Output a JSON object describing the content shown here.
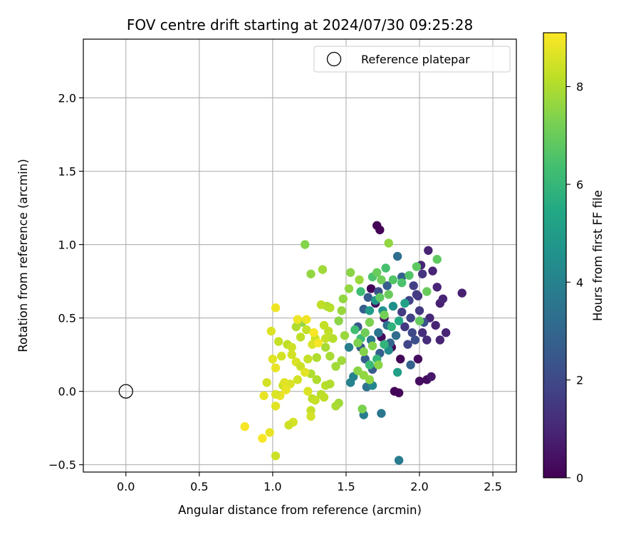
{
  "chart_data": {
    "type": "scatter",
    "title": "FOV centre drift starting at 2024/07/30 09:25:28",
    "xlabel": "Angular distance from reference (arcmin)",
    "ylabel": "Rotation from reference (arcmin)",
    "xlim": [
      -0.29,
      2.66
    ],
    "ylim": [
      -0.55,
      2.4
    ],
    "xticks": [
      0.0,
      0.5,
      1.0,
      1.5,
      2.0,
      2.5
    ],
    "xtick_labels": [
      "0.0",
      "0.5",
      "1.0",
      "1.5",
      "2.0",
      "2.5"
    ],
    "yticks": [
      -0.5,
      0.0,
      0.5,
      1.0,
      1.5,
      2.0
    ],
    "ytick_labels": [
      "−0.5",
      "0.0",
      "0.5",
      "1.0",
      "1.5",
      "2.0"
    ],
    "grid": true,
    "legend": {
      "placement": "upper right",
      "entries": [
        "Reference platepar"
      ]
    },
    "reference_point": {
      "x": 0.0,
      "y": 0.0,
      "label": "Reference platepar"
    },
    "colorbar": {
      "label": "Hours from first FF file",
      "colormap": "viridis",
      "range": [
        0,
        9.1
      ],
      "ticks": [
        0,
        2,
        4,
        6,
        8
      ],
      "tick_labels": [
        "0",
        "2",
        "4",
        "6",
        "8"
      ]
    },
    "points": [
      [
        1.71,
        1.13,
        0.05
      ],
      [
        1.73,
        1.1,
        0.05
      ],
      [
        1.67,
        0.7,
        0.1
      ],
      [
        1.7,
        0.6,
        0.3
      ],
      [
        1.76,
        0.5,
        0.4
      ],
      [
        1.74,
        0.37,
        0.2
      ],
      [
        1.81,
        0.3,
        0.1
      ],
      [
        1.87,
        0.22,
        0.1
      ],
      [
        1.83,
        0.0,
        0.1
      ],
      [
        1.86,
        -0.01,
        0.1
      ],
      [
        1.99,
        0.22,
        0.3
      ],
      [
        2.0,
        0.07,
        0.3
      ],
      [
        2.05,
        0.08,
        0.3
      ],
      [
        2.08,
        0.1,
        0.6
      ],
      [
        2.29,
        0.67,
        0.8
      ],
      [
        2.01,
        0.86,
        0.9
      ],
      [
        2.06,
        0.96,
        0.9
      ],
      [
        2.09,
        0.82,
        0.9
      ],
      [
        2.12,
        0.71,
        0.9
      ],
      [
        2.14,
        0.6,
        0.8
      ],
      [
        2.16,
        0.63,
        0.9
      ],
      [
        2.18,
        0.4,
        0.9
      ],
      [
        2.14,
        0.35,
        0.9
      ],
      [
        2.11,
        0.45,
        0.9
      ],
      [
        2.07,
        0.5,
        1.0
      ],
      [
        2.02,
        0.4,
        1.2
      ],
      [
        2.05,
        0.35,
        1.2
      ],
      [
        2.02,
        0.8,
        1.4
      ],
      [
        1.99,
        0.65,
        1.4
      ],
      [
        1.93,
        0.62,
        1.8
      ],
      [
        1.94,
        0.5,
        1.8
      ],
      [
        1.95,
        0.4,
        2.0
      ],
      [
        1.9,
        0.44,
        1.5
      ],
      [
        1.88,
        0.54,
        1.6
      ],
      [
        1.96,
        0.72,
        1.7
      ],
      [
        1.98,
        0.66,
        1.6
      ],
      [
        2.0,
        0.55,
        1.5
      ],
      [
        2.03,
        0.47,
        2.3
      ],
      [
        1.97,
        0.35,
        2.2
      ],
      [
        1.92,
        0.32,
        1.9
      ],
      [
        1.94,
        0.18,
        2.8
      ],
      [
        1.85,
        0.92,
        3.3
      ],
      [
        1.88,
        0.78,
        2.8
      ],
      [
        1.78,
        0.72,
        2.7
      ],
      [
        1.72,
        0.68,
        2.2
      ],
      [
        1.65,
        0.64,
        2.6
      ],
      [
        1.62,
        0.56,
        2.7
      ],
      [
        1.58,
        0.44,
        2.4
      ],
      [
        1.6,
        0.3,
        2.5
      ],
      [
        1.63,
        0.22,
        2.7
      ],
      [
        1.68,
        0.15,
        2.6
      ],
      [
        1.73,
        0.26,
        2.8
      ],
      [
        1.8,
        0.33,
        3.0
      ],
      [
        1.84,
        0.38,
        3.2
      ],
      [
        1.78,
        0.45,
        3.4
      ],
      [
        1.72,
        0.4,
        3.5
      ],
      [
        1.67,
        0.35,
        3.6
      ],
      [
        1.64,
        0.03,
        3.5
      ],
      [
        1.74,
        -0.15,
        3.6
      ],
      [
        1.62,
        -0.16,
        3.8
      ],
      [
        1.86,
        -0.47,
        3.8
      ],
      [
        1.52,
        0.3,
        3.9
      ],
      [
        1.55,
        0.1,
        4.0
      ],
      [
        1.68,
        0.04,
        4.2
      ],
      [
        1.53,
        0.06,
        4.0
      ],
      [
        1.79,
        0.28,
        4.4
      ],
      [
        1.75,
        0.55,
        4.6
      ],
      [
        1.7,
        0.62,
        4.8
      ],
      [
        1.66,
        0.55,
        5.0
      ],
      [
        1.82,
        0.58,
        4.5
      ],
      [
        1.85,
        0.13,
        5.1
      ],
      [
        1.9,
        0.6,
        5.2
      ],
      [
        1.86,
        0.48,
        5.5
      ],
      [
        1.81,
        0.44,
        5.8
      ],
      [
        1.76,
        0.32,
        5.9
      ],
      [
        1.71,
        0.22,
        6.0
      ],
      [
        1.66,
        0.18,
        6.1
      ],
      [
        1.6,
        0.36,
        6.2
      ],
      [
        1.56,
        0.42,
        6.3
      ],
      [
        1.6,
        0.68,
        6.2
      ],
      [
        1.68,
        0.78,
        6.5
      ],
      [
        1.77,
        0.84,
        6.4
      ],
      [
        1.82,
        0.76,
        6.6
      ],
      [
        1.88,
        0.74,
        6.5
      ],
      [
        1.93,
        0.79,
        6.6
      ],
      [
        1.98,
        0.85,
        6.8
      ],
      [
        2.12,
        0.9,
        6.8
      ],
      [
        2.0,
        0.48,
        6.9
      ],
      [
        2.05,
        0.68,
        7.0
      ],
      [
        1.73,
        0.64,
        6.8
      ],
      [
        1.79,
        0.66,
        7.0
      ],
      [
        1.74,
        0.76,
        7.1
      ],
      [
        1.71,
        0.81,
        7.0
      ],
      [
        1.76,
        0.52,
        7.2
      ],
      [
        1.66,
        0.47,
        7.3
      ],
      [
        1.63,
        0.4,
        7.1
      ],
      [
        1.58,
        0.33,
        7.3
      ],
      [
        1.62,
        0.27,
        7.4
      ],
      [
        1.68,
        0.31,
        7.4
      ],
      [
        1.72,
        0.18,
        7.5
      ],
      [
        1.58,
        0.14,
        7.5
      ],
      [
        1.62,
        0.11,
        7.6
      ],
      [
        1.66,
        0.08,
        7.6
      ],
      [
        1.61,
        -0.12,
        7.3
      ],
      [
        1.79,
        1.01,
        7.6
      ],
      [
        1.59,
        0.76,
        7.7
      ],
      [
        1.53,
        0.81,
        7.5
      ],
      [
        1.52,
        0.7,
        7.6
      ],
      [
        1.48,
        0.63,
        7.6
      ],
      [
        1.47,
        0.55,
        7.7
      ],
      [
        1.45,
        0.48,
        7.5
      ],
      [
        1.49,
        0.38,
        7.7
      ],
      [
        1.47,
        0.21,
        7.8
      ],
      [
        1.43,
        0.17,
        7.8
      ],
      [
        1.39,
        0.24,
        7.9
      ],
      [
        1.36,
        0.3,
        7.9
      ],
      [
        1.3,
        0.23,
        8.0
      ],
      [
        1.26,
        0.12,
        8.0
      ],
      [
        1.3,
        0.08,
        8.0
      ],
      [
        1.36,
        0.04,
        8.1
      ],
      [
        1.39,
        0.05,
        8.0
      ],
      [
        1.33,
        -0.02,
        8.1
      ],
      [
        1.45,
        -0.08,
        7.8
      ],
      [
        1.43,
        -0.1,
        7.9
      ],
      [
        1.27,
        -0.05,
        8.2
      ],
      [
        1.22,
        1.0,
        7.4
      ],
      [
        1.26,
        0.8,
        7.6
      ],
      [
        1.34,
        0.83,
        7.8
      ],
      [
        1.37,
        0.58,
        7.9
      ],
      [
        1.39,
        0.57,
        8.1
      ],
      [
        1.33,
        0.59,
        8.2
      ],
      [
        1.2,
        0.47,
        7.6
      ],
      [
        1.16,
        0.44,
        8.0
      ],
      [
        1.19,
        0.37,
        8.2
      ],
      [
        1.23,
        0.42,
        8.3
      ],
      [
        1.35,
        0.45,
        8.3
      ],
      [
        1.38,
        0.41,
        8.2
      ],
      [
        1.36,
        0.36,
        8.3
      ],
      [
        1.41,
        0.36,
        8.1
      ],
      [
        1.29,
        0.36,
        8.4
      ],
      [
        1.27,
        0.32,
        8.6
      ],
      [
        1.24,
        0.22,
        8.3
      ],
      [
        1.26,
        -0.13,
        8.3
      ],
      [
        1.26,
        -0.17,
        8.5
      ],
      [
        1.1,
        0.32,
        8.2
      ],
      [
        1.04,
        0.34,
        8.3
      ],
      [
        1.13,
        0.3,
        8.4
      ],
      [
        1.13,
        0.25,
        8.5
      ],
      [
        1.16,
        0.2,
        8.6
      ],
      [
        1.19,
        0.17,
        8.4
      ],
      [
        1.22,
        0.13,
        8.7
      ],
      [
        1.17,
        0.08,
        8.5
      ],
      [
        1.12,
        0.05,
        8.6
      ],
      [
        1.07,
        0.04,
        8.4
      ],
      [
        1.06,
        0.24,
        8.5
      ],
      [
        1.08,
        0.06,
        8.7
      ],
      [
        1.09,
        0.01,
        8.8
      ],
      [
        1.05,
        -0.03,
        8.8
      ],
      [
        1.02,
        -0.02,
        8.6
      ],
      [
        1.0,
        0.22,
        8.7
      ],
      [
        1.02,
        0.16,
        8.8
      ],
      [
        0.96,
        0.06,
        8.5
      ],
      [
        0.94,
        -0.03,
        8.8
      ],
      [
        1.02,
        -0.1,
        8.7
      ],
      [
        0.99,
        0.41,
        8.6
      ],
      [
        1.02,
        0.57,
        8.9
      ],
      [
        1.17,
        0.49,
        8.9
      ],
      [
        1.23,
        0.49,
        8.9
      ],
      [
        1.28,
        0.4,
        9.0
      ],
      [
        1.31,
        0.33,
        9.0
      ],
      [
        1.24,
        0.0,
        8.6
      ],
      [
        1.29,
        -0.06,
        8.3
      ],
      [
        1.35,
        -0.04,
        8.2
      ],
      [
        1.14,
        -0.21,
        8.5
      ],
      [
        1.11,
        -0.23,
        8.4
      ],
      [
        1.02,
        -0.44,
        8.4
      ],
      [
        0.98,
        -0.28,
        8.8
      ],
      [
        0.93,
        -0.32,
        9.0
      ],
      [
        0.81,
        -0.24,
        9.0
      ]
    ]
  }
}
